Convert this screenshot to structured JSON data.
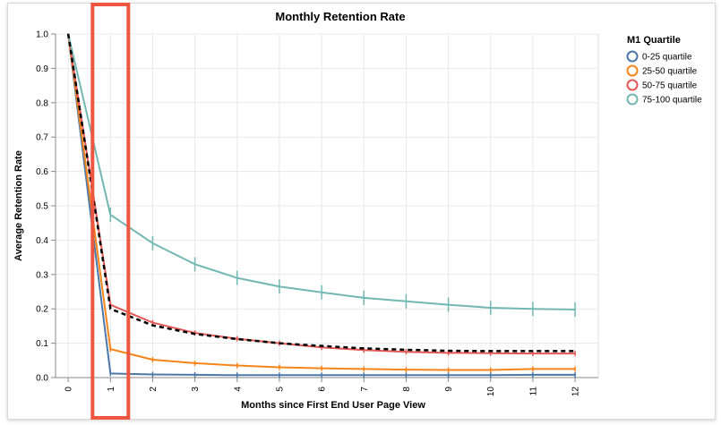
{
  "chart_data": {
    "type": "line",
    "title": "Monthly Retention Rate",
    "xlabel": "Months since First End User Page View",
    "ylabel": "Average Retention Rate",
    "x": [
      0,
      1,
      2,
      3,
      4,
      5,
      6,
      7,
      8,
      9,
      10,
      11,
      12
    ],
    "xlim": [
      -0.3,
      12.55
    ],
    "ylim": [
      0,
      1
    ],
    "y_ticks": [
      "0.0",
      "0.1",
      "0.2",
      "0.3",
      "0.4",
      "0.5",
      "0.6",
      "0.7",
      "0.8",
      "0.9",
      "1.0"
    ],
    "x_ticks": [
      "0",
      "1",
      "2",
      "3",
      "4",
      "5",
      "6",
      "7",
      "8",
      "9",
      "10",
      "11",
      "12"
    ],
    "grid": true,
    "legend": {
      "title": "M1 Quartile",
      "position": "right"
    },
    "series": [
      {
        "name": "0-25 quartile",
        "color": "#4c78a8",
        "values": [
          1.0,
          0.012,
          0.009,
          0.008,
          0.007,
          0.007,
          0.007,
          0.007,
          0.007,
          0.007,
          0.007,
          0.008,
          0.008
        ]
      },
      {
        "name": "25-50 quartile",
        "color": "#f58518",
        "values": [
          1.0,
          0.083,
          0.052,
          0.042,
          0.035,
          0.03,
          0.027,
          0.025,
          0.023,
          0.022,
          0.022,
          0.025,
          0.025
        ]
      },
      {
        "name": "50-75 quartile",
        "color": "#e45756",
        "values": [
          1.0,
          0.212,
          0.16,
          0.13,
          0.113,
          0.1,
          0.088,
          0.08,
          0.075,
          0.072,
          0.071,
          0.07,
          0.07
        ]
      },
      {
        "name": "75-100 quartile",
        "color": "#72b7b2",
        "values": [
          1.0,
          0.474,
          0.391,
          0.33,
          0.29,
          0.265,
          0.248,
          0.232,
          0.222,
          0.212,
          0.203,
          0.2,
          0.198
        ],
        "error_bars": true
      }
    ],
    "average_line": {
      "color": "#000000",
      "style": "dashed",
      "values": [
        1.0,
        0.2,
        0.152,
        0.127,
        0.112,
        0.1,
        0.092,
        0.085,
        0.081,
        0.078,
        0.077,
        0.077,
        0.077
      ]
    },
    "highlight": {
      "x": 1,
      "color": "#f0553f"
    }
  }
}
